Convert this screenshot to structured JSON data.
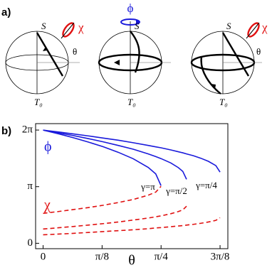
{
  "panel_a": {
    "label": "a)",
    "spheres": [
      {
        "top": "S",
        "bottom": "T₀",
        "angle": "θ",
        "rotation": "χ"
      },
      {
        "top": "S",
        "bottom": "T₀",
        "rotation": "ϕ"
      },
      {
        "top": "S",
        "bottom": "T₀",
        "angle": "θ",
        "rotation": "χ"
      }
    ]
  },
  "panel_b_label": "b)",
  "chart_data": {
    "type": "line",
    "xlabel": "θ",
    "x": [
      0,
      0.1,
      0.2,
      0.3,
      0.4,
      0.5,
      0.6,
      0.7,
      0.75,
      0.785,
      0.85,
      0.9,
      0.93,
      0.955,
      1.0,
      1.05,
      1.1,
      1.15,
      1.178
    ],
    "series": [
      {
        "color": "#1a1adb",
        "dashed": false,
        "values": [
          6.28,
          6.08,
          5.86,
          5.62,
          5.36,
          5.05,
          4.69,
          4.21,
          3.85,
          3.2,
          null,
          null,
          null,
          null,
          null,
          null,
          null,
          null,
          null
        ]
      },
      {
        "color": "#1a1adb",
        "dashed": false,
        "values": [
          6.28,
          6.13,
          5.98,
          5.81,
          5.63,
          5.43,
          5.22,
          4.96,
          4.81,
          4.7,
          4.46,
          4.2,
          3.99,
          3.55,
          null,
          null,
          null,
          null,
          null
        ]
      },
      {
        "color": "#1a1adb",
        "dashed": false,
        "values": [
          6.28,
          6.18,
          6.07,
          5.96,
          5.84,
          5.72,
          5.58,
          5.43,
          5.35,
          5.3,
          5.18,
          5.08,
          5.02,
          4.96,
          4.86,
          4.72,
          4.55,
          4.31,
          3.95
        ]
      },
      {
        "color": "#e01010",
        "dashed": true,
        "values": [
          1.66,
          1.76,
          1.87,
          1.98,
          2.11,
          2.26,
          2.43,
          2.67,
          2.84,
          3.16,
          null,
          null,
          null,
          null,
          null,
          null,
          null,
          null,
          null
        ]
      },
      {
        "color": "#e01010",
        "dashed": true,
        "values": [
          0.79,
          0.86,
          0.93,
          1.01,
          1.09,
          1.18,
          1.29,
          1.4,
          1.47,
          1.52,
          1.64,
          1.76,
          1.85,
          2.06,
          null,
          null,
          null,
          null,
          null
        ]
      },
      {
        "color": "#e01010",
        "dashed": true,
        "values": [
          0.47,
          0.51,
          0.55,
          0.6,
          0.65,
          0.7,
          0.75,
          0.81,
          0.85,
          0.87,
          0.92,
          0.96,
          0.98,
          1.01,
          1.05,
          1.11,
          1.18,
          1.27,
          1.42
        ]
      }
    ],
    "annotations": [
      {
        "text": "ϕ",
        "color": "#1a1adb"
      },
      {
        "text": "χ",
        "color": "#e01010"
      },
      {
        "text": "γ=π",
        "color": "#000000"
      },
      {
        "text": "γ=π/2",
        "color": "#000000"
      },
      {
        "text": "γ=π/4",
        "color": "#000000"
      }
    ],
    "xlim": [
      -0.05,
      1.23
    ],
    "ylim": [
      -0.3,
      6.64
    ],
    "xticks": [
      0,
      {
        "value": 0.3927,
        "label": "π/8"
      },
      {
        "value": 0.7854,
        "label": "π/4"
      },
      {
        "value": 1.1781,
        "label": "3π/8"
      }
    ],
    "yticks": [
      0,
      {
        "value": 3.1416,
        "label": "π"
      },
      {
        "value": 6.2832,
        "label": "2π"
      }
    ]
  }
}
